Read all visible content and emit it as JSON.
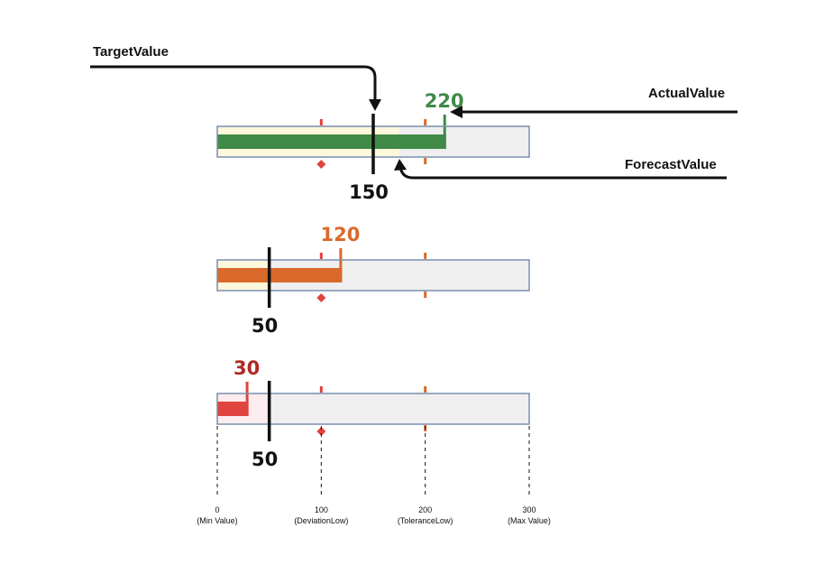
{
  "colors": {
    "green": "#3f8a47",
    "orange": "#d9692a",
    "red": "#e0443f",
    "darkred": "#b02a22",
    "frame": "#7a8faf",
    "track": "#efefef",
    "sand": "#fdf8dc",
    "pink": "#fdecef",
    "deviation_marker": "#e0443f",
    "tolerance_marker": "#d9692a",
    "black": "#111111"
  },
  "scale": {
    "min": 0,
    "max": 300,
    "ticks": [
      {
        "value": 0,
        "number": "0",
        "label": "(Min Value)"
      },
      {
        "value": 100,
        "number": "100",
        "label": "(DeviationLow)"
      },
      {
        "value": 200,
        "number": "200",
        "label": "(ToleranceLow)"
      },
      {
        "value": 300,
        "number": "300",
        "label": "(Max Value)"
      }
    ],
    "deviation_low": 100,
    "tolerance_low": 200
  },
  "callouts": {
    "target": "TargetValue",
    "actual": "ActualValue",
    "forecast": "ForecastValue"
  },
  "chart_data": {
    "type": "bar",
    "xlim": [
      0,
      300
    ],
    "series": [
      {
        "actual": 220,
        "actual_label": "220",
        "target": 150,
        "target_label": "150",
        "forecast": 175,
        "color": "green",
        "label_color": "green",
        "band": "sand"
      },
      {
        "actual": 120,
        "actual_label": "120",
        "target": 50,
        "target_label": "50",
        "forecast": 50,
        "color": "orange",
        "label_color": "orange",
        "band": "sand"
      },
      {
        "actual": 30,
        "actual_label": "30",
        "target": 50,
        "target_label": "50",
        "forecast": 50,
        "color": "red",
        "label_color": "darkred",
        "band": "pink"
      }
    ]
  }
}
